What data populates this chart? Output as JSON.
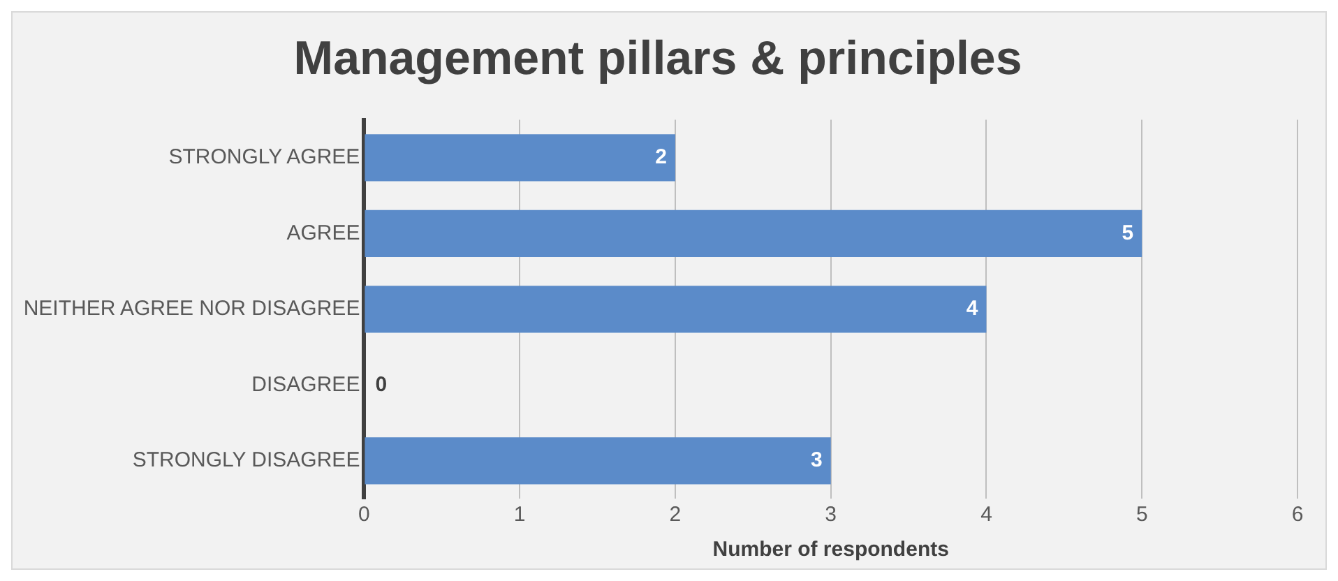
{
  "chart_data": {
    "type": "bar",
    "orientation": "horizontal",
    "title": "Management pillars & principles",
    "xlabel": "Number of respondents",
    "categories": [
      "STRONGLY AGREE",
      "AGREE",
      "NEITHER AGREE NOR DISAGREE",
      "DISAGREE",
      "STRONGLY DISAGREE"
    ],
    "values": [
      2,
      5,
      4,
      0,
      3
    ],
    "color": "#5b8bc9",
    "xlim": [
      0,
      6
    ],
    "xticks": [
      0,
      1,
      2,
      3,
      4,
      5,
      6
    ],
    "grid": "x",
    "data_labels": true,
    "legend": false
  }
}
